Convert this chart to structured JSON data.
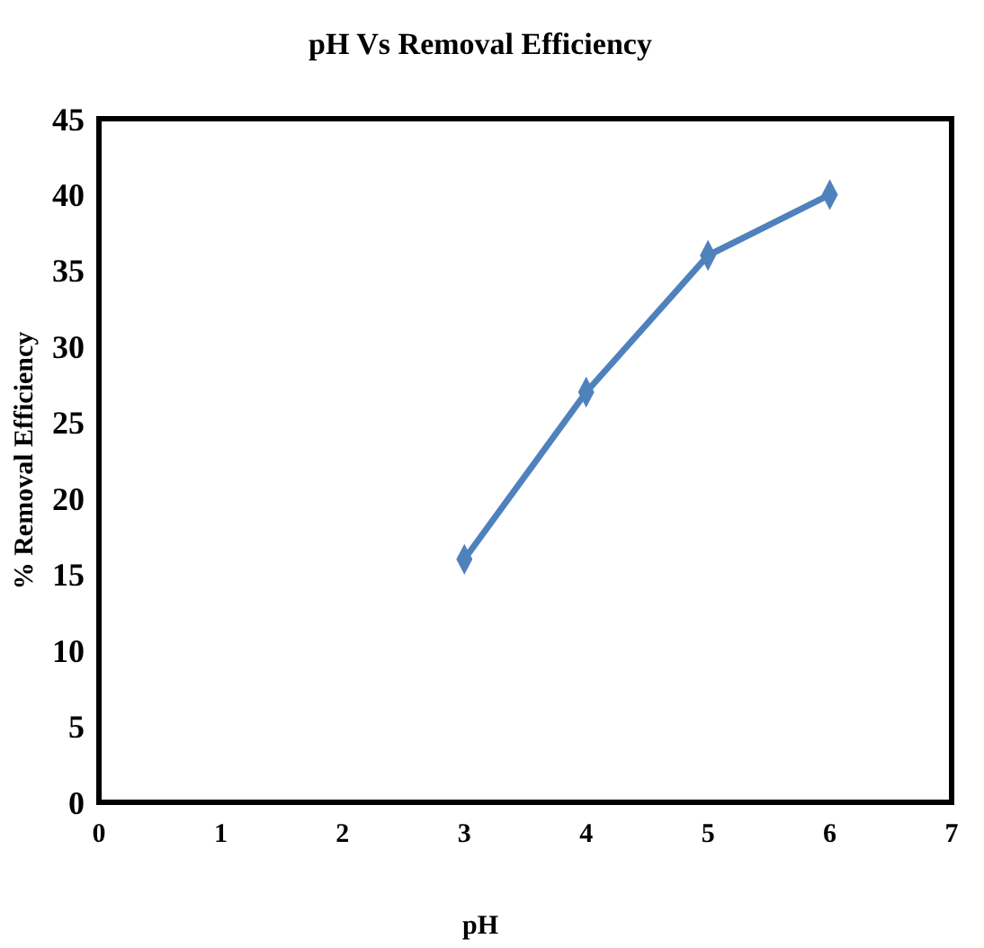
{
  "chart_data": {
    "type": "line",
    "title": "pH Vs Removal Efficiency",
    "xlabel": "pH",
    "ylabel": "% Removal Efficiency",
    "x": [
      3,
      4,
      5,
      6
    ],
    "series": [
      {
        "color": "#4f81bd",
        "values": [
          16,
          27,
          36,
          40
        ]
      }
    ],
    "xlim": [
      0,
      7
    ],
    "xticks": [
      0,
      1,
      2,
      3,
      4,
      5,
      6,
      7
    ],
    "ylim": [
      0,
      45
    ],
    "yticks": [
      0,
      5,
      10,
      15,
      20,
      25,
      30,
      35,
      40,
      45
    ],
    "marker": "diamond",
    "line_style": "solid"
  }
}
